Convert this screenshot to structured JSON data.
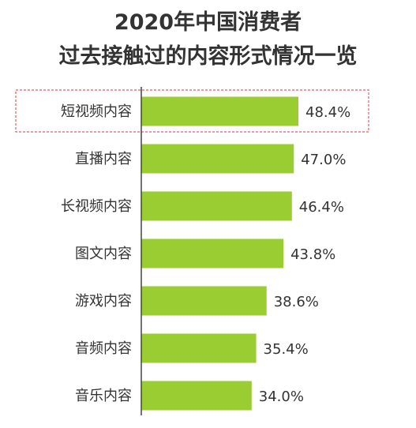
{
  "chart_data": {
    "type": "bar",
    "orientation": "horizontal",
    "title": "2020年中国消费者",
    "subtitle": "过去接触过的内容形式情况一览",
    "categories": [
      "短视频内容",
      "直播内容",
      "长视频内容",
      "图文内容",
      "游戏内容",
      "音频内容",
      "音乐内容"
    ],
    "values": [
      48.4,
      47.0,
      46.4,
      43.8,
      38.6,
      35.4,
      34.0
    ],
    "value_labels": [
      "48.4%",
      "47.0%",
      "46.4%",
      "43.8%",
      "38.6%",
      "35.4%",
      "34.0%"
    ],
    "unit": "%",
    "xlim": [
      0,
      60
    ],
    "grid": false,
    "highlighted_category": "短视频内容",
    "bar_color": "#9ACD32",
    "highlight_color": "#E06060"
  }
}
